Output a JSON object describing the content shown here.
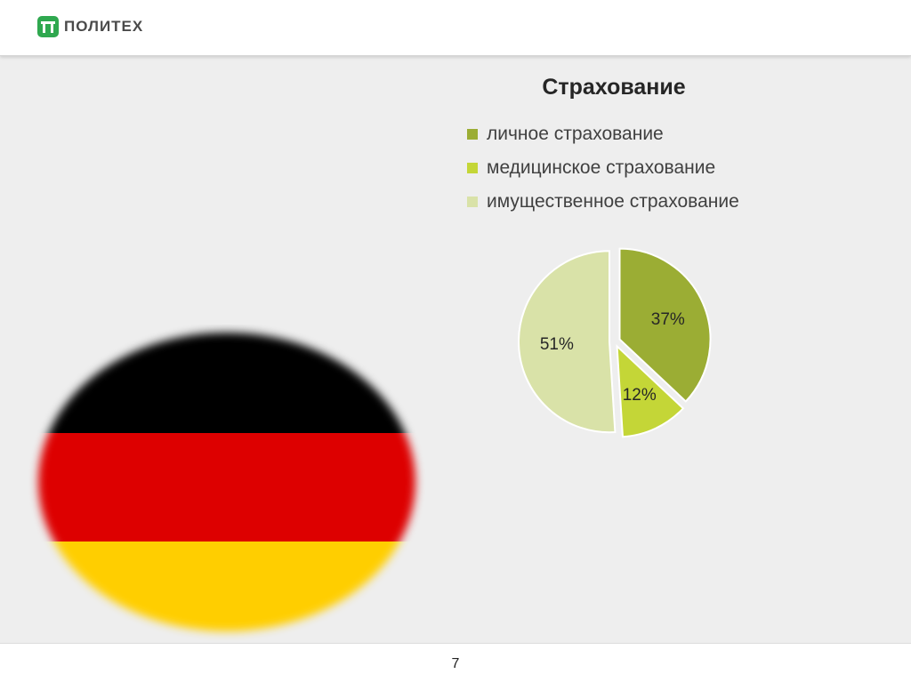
{
  "header": {
    "logo_text": "ПОЛИТЕХ",
    "logo_icon": "pi-logo-icon"
  },
  "footer": {
    "page_number": "7"
  },
  "flag": {
    "colors": [
      "#000000",
      "#dd0000",
      "#ffce00"
    ]
  },
  "colors": {
    "brand": "#2fa84f",
    "background": "#eeeeee"
  },
  "chart_data": {
    "type": "pie",
    "title": "Страхование",
    "legend_position": "top",
    "categories": [
      "личное страхование",
      "медицинское страхование",
      "имущественное страхование"
    ],
    "values": [
      37,
      12,
      51
    ],
    "labels": [
      "37%",
      "12%",
      "51%"
    ],
    "colors": [
      "#9bad34",
      "#c4d637",
      "#d9e2a8"
    ]
  }
}
